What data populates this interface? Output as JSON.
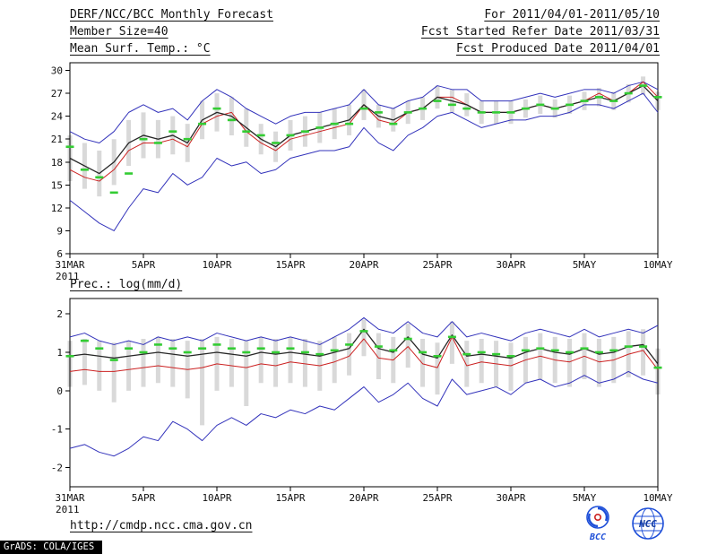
{
  "header": {
    "line1_left": "DERF/NCC/BCC Monthly Forecast",
    "line2_left": "Member Size=40",
    "line3_left": "Mean Surf. Temp.: °C",
    "line1_right": "For 2011/04/01-2011/05/10",
    "line2_right": "Fcst Started Refer Date 2011/03/31",
    "line3_right": "Fcst Produced Date 2011/04/01"
  },
  "footer": {
    "url": "http://cmdp.ncc.cma.gov.cn",
    "grads_tag": "GrADS: COLA/IGES",
    "logos": [
      {
        "name": "bcc-logo",
        "label": "BCC"
      },
      {
        "name": "ncc-logo",
        "label": "NCC"
      }
    ]
  },
  "colors": {
    "frame": "#000000",
    "ensemble_bounds": "#3333bb",
    "control_forecast": "#cc2222",
    "ensemble_mean": "#262626",
    "observation": "#33cc33",
    "ensemble_spread": "#d9d9d9",
    "logo_blue": "#1d4ed8",
    "badge_bg": "#000000",
    "badge_fg": "#ffffff"
  },
  "chart_data": [
    {
      "type": "line",
      "title": "Mean Surf. Temp.: °C",
      "xlabel": "",
      "ylabel": "°C",
      "n_days": 41,
      "x_tick_labels": [
        "31MAR",
        "5APR",
        "10APR",
        "15APR",
        "20APR",
        "25APR",
        "30APR",
        "5MAY",
        "10MAY"
      ],
      "x_tick_days": [
        0,
        5,
        10,
        15,
        20,
        25,
        30,
        35,
        40
      ],
      "x_sub_label": "2011",
      "ylim": [
        6,
        31
      ],
      "yticks": [
        6,
        9,
        12,
        15,
        18,
        21,
        24,
        27,
        30
      ],
      "grid": false,
      "legend": "none",
      "series": [
        {
          "name": "ensemble-spread",
          "type": "bar",
          "color": "#d9d9d9",
          "low": [
            15.5,
            14.5,
            13.5,
            15.0,
            17.5,
            18.5,
            18.5,
            19.0,
            18.0,
            21.0,
            22.0,
            21.5,
            20.0,
            19.0,
            18.0,
            19.5,
            20.0,
            20.5,
            21.0,
            21.5,
            23.5,
            22.5,
            22.0,
            23.0,
            23.5,
            25.0,
            24.5,
            24.0,
            23.0,
            23.0,
            23.0,
            23.8,
            24.3,
            23.8,
            24.3,
            24.8,
            25.3,
            24.8,
            25.8,
            26.8,
            24.8
          ],
          "high": [
            21.5,
            20.5,
            19.5,
            21.0,
            23.5,
            24.5,
            23.5,
            24.0,
            23.0,
            26.0,
            27.0,
            26.5,
            25.0,
            23.0,
            22.0,
            23.5,
            24.0,
            24.5,
            25.0,
            25.5,
            27.5,
            25.5,
            25.0,
            26.0,
            26.5,
            28.0,
            27.5,
            27.0,
            26.0,
            26.0,
            26.0,
            26.2,
            26.7,
            26.2,
            26.7,
            27.2,
            27.7,
            27.2,
            28.2,
            29.2,
            27.2
          ]
        },
        {
          "name": "ensemble-max",
          "type": "line",
          "color": "#3333bb",
          "width": 1,
          "values": [
            22.0,
            21.0,
            20.5,
            22.0,
            24.5,
            25.5,
            24.5,
            25.0,
            23.5,
            26.0,
            27.5,
            26.5,
            25.0,
            24.0,
            23.0,
            24.0,
            24.5,
            24.5,
            25.0,
            25.5,
            27.5,
            25.5,
            25.0,
            26.0,
            26.5,
            28.0,
            27.5,
            27.5,
            26.0,
            26.0,
            26.0,
            26.5,
            27.0,
            26.5,
            27.0,
            27.5,
            27.5,
            27.0,
            28.0,
            28.5,
            27.5
          ]
        },
        {
          "name": "ensemble-min",
          "type": "line",
          "color": "#3333bb",
          "width": 1,
          "values": [
            13.0,
            11.5,
            10.0,
            9.0,
            12.0,
            14.5,
            14.0,
            16.5,
            15.0,
            16.0,
            18.5,
            17.5,
            18.0,
            16.5,
            17.0,
            18.5,
            19.0,
            19.5,
            19.5,
            20.0,
            22.5,
            20.5,
            19.5,
            21.5,
            22.5,
            24.0,
            24.5,
            23.5,
            22.5,
            23.0,
            23.5,
            23.5,
            24.0,
            24.0,
            24.5,
            25.5,
            25.5,
            25.0,
            26.0,
            27.0,
            24.5
          ]
        },
        {
          "name": "control-forecast",
          "type": "line",
          "color": "#cc2222",
          "width": 1,
          "values": [
            17.0,
            16.0,
            15.5,
            17.0,
            19.5,
            20.5,
            20.5,
            21.0,
            20.0,
            23.0,
            24.0,
            24.5,
            22.0,
            20.5,
            19.5,
            21.0,
            21.5,
            22.0,
            22.5,
            23.0,
            25.5,
            23.5,
            23.0,
            24.5,
            25.0,
            26.5,
            26.5,
            25.5,
            24.5,
            24.5,
            24.5,
            25.0,
            25.5,
            25.0,
            25.5,
            26.0,
            27.0,
            26.0,
            27.0,
            28.5,
            26.5
          ]
        },
        {
          "name": "ensemble-mean",
          "type": "line",
          "color": "#262626",
          "width": 1.3,
          "values": [
            18.5,
            17.5,
            16.5,
            18.0,
            20.5,
            21.5,
            21.0,
            21.5,
            20.5,
            23.5,
            24.5,
            24.0,
            22.5,
            21.0,
            20.0,
            21.5,
            22.0,
            22.5,
            23.0,
            23.5,
            25.5,
            24.0,
            23.5,
            24.5,
            25.0,
            26.5,
            26.0,
            25.5,
            24.5,
            24.5,
            24.5,
            25.0,
            25.5,
            25.0,
            25.5,
            26.0,
            26.5,
            26.0,
            27.0,
            28.0,
            26.0
          ]
        },
        {
          "name": "observation",
          "type": "dash",
          "color": "#33cc33",
          "width": 2.6,
          "values": [
            20.0,
            17.0,
            16.0,
            14.0,
            16.5,
            21.0,
            20.5,
            22.0,
            21.0,
            23.0,
            25.0,
            23.5,
            22.0,
            21.5,
            20.5,
            21.5,
            22.0,
            22.5,
            23.0,
            23.0,
            25.0,
            24.5,
            23.0,
            24.5,
            25.0,
            26.0,
            25.5,
            25.0,
            24.5,
            24.5,
            24.5,
            25.0,
            25.5,
            25.0,
            25.5,
            26.0,
            26.5,
            26.0,
            27.0,
            28.0,
            26.5
          ]
        }
      ]
    },
    {
      "type": "line",
      "title": "Prec.: log(mm/d)",
      "xlabel": "",
      "ylabel": "log(mm/d)",
      "n_days": 41,
      "x_tick_labels": [
        "31MAR",
        "5APR",
        "10APR",
        "15APR",
        "20APR",
        "25APR",
        "30APR",
        "5MAY",
        "10MAY"
      ],
      "x_tick_days": [
        0,
        5,
        10,
        15,
        20,
        25,
        30,
        35,
        40
      ],
      "x_sub_label": "2011",
      "ylim": [
        -2.5,
        2.4
      ],
      "yticks": [
        -2,
        -1,
        0,
        1,
        2
      ],
      "grid": false,
      "legend": "none",
      "series": [
        {
          "name": "ensemble-spread",
          "type": "bar",
          "color": "#d9d9d9",
          "low": [
            0.1,
            0.15,
            0.0,
            -0.3,
            0.0,
            0.1,
            0.2,
            0.1,
            -0.2,
            -0.9,
            0.0,
            0.1,
            -0.4,
            0.2,
            0.1,
            0.2,
            0.1,
            0.0,
            0.2,
            0.4,
            0.9,
            0.3,
            0.2,
            0.6,
            0.1,
            -0.1,
            0.7,
            0.1,
            0.2,
            0.1,
            0.0,
            0.2,
            0.3,
            0.2,
            0.1,
            0.3,
            0.1,
            0.2,
            0.35,
            0.4,
            -0.1
          ],
          "high": [
            1.3,
            1.35,
            1.3,
            1.25,
            1.3,
            1.35,
            1.4,
            1.35,
            1.3,
            1.35,
            1.4,
            1.35,
            1.3,
            1.4,
            1.35,
            1.4,
            1.35,
            1.3,
            1.4,
            1.5,
            1.85,
            1.5,
            1.4,
            1.75,
            1.35,
            1.25,
            1.8,
            1.3,
            1.35,
            1.3,
            1.25,
            1.4,
            1.5,
            1.4,
            1.35,
            1.5,
            1.35,
            1.4,
            1.55,
            1.6,
            1.1
          ]
        },
        {
          "name": "ensemble-max",
          "type": "line",
          "color": "#3333bb",
          "width": 1,
          "values": [
            1.4,
            1.5,
            1.3,
            1.2,
            1.3,
            1.2,
            1.4,
            1.3,
            1.4,
            1.3,
            1.5,
            1.4,
            1.3,
            1.4,
            1.3,
            1.4,
            1.3,
            1.2,
            1.4,
            1.6,
            1.9,
            1.6,
            1.5,
            1.8,
            1.5,
            1.4,
            1.8,
            1.4,
            1.5,
            1.4,
            1.3,
            1.5,
            1.6,
            1.5,
            1.4,
            1.6,
            1.4,
            1.5,
            1.6,
            1.5,
            1.7
          ]
        },
        {
          "name": "ensemble-min",
          "type": "line",
          "color": "#3333bb",
          "width": 1,
          "values": [
            -1.5,
            -1.4,
            -1.6,
            -1.7,
            -1.5,
            -1.2,
            -1.3,
            -0.8,
            -1.0,
            -1.3,
            -0.9,
            -0.7,
            -0.9,
            -0.6,
            -0.7,
            -0.5,
            -0.6,
            -0.4,
            -0.5,
            -0.2,
            0.1,
            -0.3,
            -0.1,
            0.2,
            -0.2,
            -0.4,
            0.3,
            -0.1,
            0.0,
            0.1,
            -0.1,
            0.2,
            0.3,
            0.1,
            0.2,
            0.4,
            0.2,
            0.3,
            0.5,
            0.3,
            0.2
          ]
        },
        {
          "name": "control-forecast",
          "type": "line",
          "color": "#cc2222",
          "width": 1,
          "values": [
            0.5,
            0.55,
            0.5,
            0.5,
            0.55,
            0.6,
            0.65,
            0.6,
            0.55,
            0.6,
            0.7,
            0.65,
            0.6,
            0.7,
            0.65,
            0.75,
            0.7,
            0.65,
            0.75,
            0.9,
            1.35,
            0.85,
            0.8,
            1.15,
            0.7,
            0.6,
            1.4,
            0.65,
            0.75,
            0.7,
            0.65,
            0.8,
            0.9,
            0.8,
            0.75,
            0.9,
            0.75,
            0.8,
            0.95,
            1.05,
            0.55
          ]
        },
        {
          "name": "ensemble-mean",
          "type": "line",
          "color": "#262626",
          "width": 1.3,
          "values": [
            0.9,
            0.95,
            0.9,
            0.85,
            0.9,
            0.95,
            1.0,
            0.95,
            0.9,
            0.95,
            1.0,
            0.95,
            0.9,
            1.0,
            0.95,
            1.0,
            0.95,
            0.9,
            1.0,
            1.1,
            1.6,
            1.1,
            1.0,
            1.4,
            0.95,
            0.85,
            1.45,
            0.9,
            0.95,
            0.9,
            0.85,
            1.0,
            1.1,
            1.0,
            0.95,
            1.1,
            0.95,
            1.0,
            1.15,
            1.2,
            0.7
          ]
        },
        {
          "name": "observation",
          "type": "dash",
          "color": "#33cc33",
          "width": 2.6,
          "values": [
            0.9,
            1.3,
            1.1,
            0.8,
            1.1,
            1.0,
            1.2,
            1.1,
            1.0,
            1.1,
            1.2,
            1.1,
            1.0,
            1.1,
            1.0,
            1.1,
            1.0,
            0.95,
            1.05,
            1.2,
            1.55,
            1.15,
            1.05,
            1.35,
            1.0,
            0.9,
            1.4,
            0.95,
            1.0,
            0.95,
            0.9,
            1.05,
            1.1,
            1.05,
            1.0,
            1.1,
            1.0,
            1.05,
            1.15,
            1.15,
            0.6
          ]
        }
      ]
    }
  ]
}
